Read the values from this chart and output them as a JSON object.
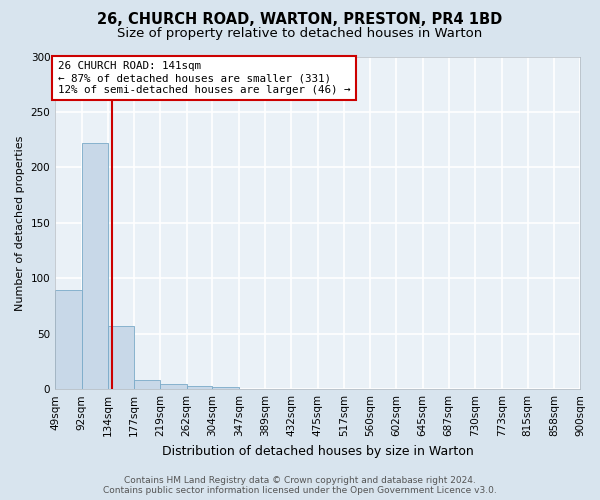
{
  "title": "26, CHURCH ROAD, WARTON, PRESTON, PR4 1BD",
  "subtitle": "Size of property relative to detached houses in Warton",
  "xlabel": "Distribution of detached houses by size in Warton",
  "ylabel": "Number of detached properties",
  "bin_edges": [
    49,
    92,
    134,
    177,
    219,
    262,
    304,
    347,
    389,
    432,
    475,
    517,
    560,
    602,
    645,
    687,
    730,
    773,
    815,
    858,
    900
  ],
  "bar_heights": [
    89,
    222,
    57,
    8,
    5,
    3,
    2,
    0,
    0,
    0,
    0,
    0,
    0,
    0,
    0,
    0,
    0,
    0,
    0,
    0
  ],
  "bar_color": "#c8d8e8",
  "bar_edge_color": "#7aaac8",
  "property_line_x": 141,
  "property_line_color": "#cc0000",
  "annotation_line1": "26 CHURCH ROAD: 141sqm",
  "annotation_line2": "← 87% of detached houses are smaller (331)",
  "annotation_line3": "12% of semi-detached houses are larger (46) →",
  "annotation_box_color": "#ffffff",
  "annotation_box_edge_color": "#cc0000",
  "ylim": [
    0,
    300
  ],
  "yticks": [
    0,
    50,
    100,
    150,
    200,
    250,
    300
  ],
  "footnote1": "Contains HM Land Registry data © Crown copyright and database right 2024.",
  "footnote2": "Contains public sector information licensed under the Open Government Licence v3.0.",
  "fig_background_color": "#d8e4ee",
  "plot_background_color": "#eaf1f7",
  "grid_color": "#ffffff",
  "title_fontsize": 10.5,
  "subtitle_fontsize": 9.5,
  "ylabel_fontsize": 8,
  "xlabel_fontsize": 9,
  "tick_fontsize": 7.5,
  "annotation_fontsize": 7.8,
  "footnote_fontsize": 6.5,
  "footnote_color": "#555555"
}
